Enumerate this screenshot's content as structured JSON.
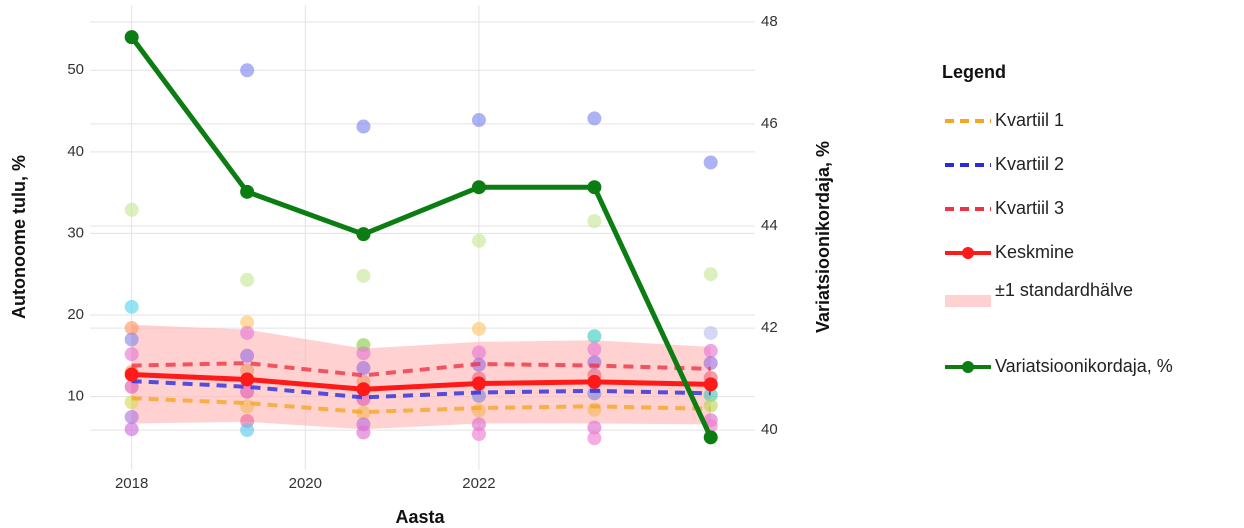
{
  "chart_data": {
    "type": "line",
    "x_label": "Aasta",
    "y_label": "Autonoome tulu, %",
    "y2_label": "Variatsioonikordaja, %",
    "legend_title": "Legend",
    "x": [
      2018,
      2019.33,
      2020.67,
      2022,
      2023.33,
      2024.67
    ],
    "xlim": [
      2017.52,
      2025.18
    ],
    "xticks": [
      2018,
      2020,
      2022
    ],
    "ylim": [
      1,
      58
    ],
    "yticks": [
      10,
      20,
      30,
      40,
      50
    ],
    "y2lim": [
      39.22,
      48.33
    ],
    "y2ticks": [
      40,
      42,
      44,
      46,
      48
    ],
    "grid": true,
    "band": {
      "name": "±1 standardhälve",
      "color": "#ffb3b3",
      "upper": [
        18.8,
        18.2,
        15.9,
        16.7,
        16.9,
        16.1
      ],
      "lower": [
        6.7,
        6.9,
        6.0,
        6.7,
        6.7,
        6.6
      ]
    },
    "series": [
      {
        "name": "Kvartiil 1",
        "color": "#f5a623",
        "dash": true,
        "values": [
          9.8,
          9.2,
          8.1,
          8.6,
          8.8,
          8.5
        ]
      },
      {
        "name": "Kvartiil 2",
        "color": "#2a2ae0",
        "dash": true,
        "values": [
          11.9,
          11.2,
          9.9,
          10.5,
          10.7,
          10.4
        ]
      },
      {
        "name": "Kvartiil 3",
        "color": "#ee3344",
        "dash": true,
        "values": [
          13.8,
          14.1,
          12.6,
          14.0,
          13.8,
          13.4
        ]
      },
      {
        "name": "Keskmine",
        "color": "#ff1a1a",
        "dash": false,
        "markers": true,
        "values": [
          12.7,
          12.1,
          10.9,
          11.6,
          11.8,
          11.5
        ]
      },
      {
        "name": "Variatsioonikordaja, %",
        "color": "#0b7d12",
        "dash": false,
        "markers": true,
        "axis": "y2",
        "values": [
          47.7,
          44.67,
          43.84,
          44.76,
          44.76,
          39.86
        ]
      }
    ],
    "points": {
      "x": [
        2018,
        2018,
        2018,
        2018,
        2018,
        2018,
        2018,
        2018,
        2018,
        2018,
        2019.33,
        2019.33,
        2019.33,
        2019.33,
        2019.33,
        2019.33,
        2019.33,
        2019.33,
        2019.33,
        2019.33,
        2020.67,
        2020.67,
        2020.67,
        2020.67,
        2020.67,
        2020.67,
        2020.67,
        2020.67,
        2020.67,
        2020.67,
        2022,
        2022,
        2022,
        2022,
        2022,
        2022,
        2022,
        2022,
        2022,
        2022,
        2023.33,
        2023.33,
        2023.33,
        2023.33,
        2023.33,
        2023.33,
        2023.33,
        2023.33,
        2023.33,
        2023.33,
        2024.67,
        2024.67,
        2024.67,
        2024.67,
        2024.67,
        2024.67,
        2024.67,
        2024.67,
        2024.67,
        2024.67
      ],
      "y": [
        32.9,
        21.0,
        18.4,
        17.0,
        15.2,
        13.0,
        11.2,
        9.3,
        7.5,
        6.0,
        50.0,
        24.3,
        19.1,
        17.8,
        15.0,
        13.2,
        10.6,
        8.8,
        7.0,
        5.9,
        43.1,
        24.8,
        16.3,
        15.3,
        13.5,
        11.8,
        9.7,
        8.0,
        6.6,
        5.6,
        43.9,
        29.1,
        18.3,
        15.4,
        13.9,
        12.2,
        10.1,
        8.3,
        6.6,
        5.4,
        44.1,
        31.5,
        17.4,
        15.8,
        14.2,
        12.6,
        10.4,
        8.4,
        6.2,
        4.9,
        38.7,
        25.0,
        17.8,
        15.6,
        14.1,
        12.3,
        10.2,
        8.9,
        7.1,
        6.4
      ],
      "colors": [
        "#c8e89a",
        "#5ad6ee",
        "#ff9a6a",
        "#8a8ae8",
        "#e87ad6",
        "#f59a5a",
        "#e060b0",
        "#d8d860",
        "#b07ae0",
        "#d070e0",
        "#7f88ee",
        "#c8e89a",
        "#ffc870",
        "#e87ad6",
        "#a070e0",
        "#f09a70",
        "#e060b0",
        "#f5b860",
        "#ee6aa0",
        "#60c8ee",
        "#7f88ee",
        "#c8e89a",
        "#8ad04a",
        "#e87ad6",
        "#a070e0",
        "#f09a70",
        "#e060b0",
        "#f5b860",
        "#c070e0",
        "#e070d0",
        "#7f88ee",
        "#c8e89a",
        "#ffc870",
        "#e87ad6",
        "#a070e0",
        "#ee6a80",
        "#8888d8",
        "#f5b860",
        "#e070d0",
        "#f080d0",
        "#7f88ee",
        "#c8e89a",
        "#40d0c0",
        "#e87ad6",
        "#a070e0",
        "#ee6a80",
        "#8888d8",
        "#f5b860",
        "#e070d0",
        "#f080d0",
        "#7f88ee",
        "#c8e89a",
        "#c0c0f0",
        "#e87ad6",
        "#a070e0",
        "#ee6a80",
        "#50c8b0",
        "#b8d860",
        "#e070d0",
        "#f080d0"
      ]
    }
  }
}
